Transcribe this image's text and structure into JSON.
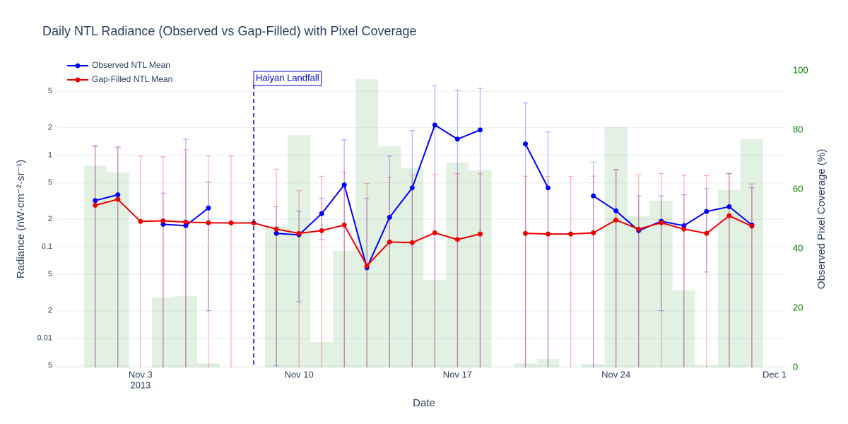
{
  "chart_data": {
    "type": "line",
    "title": "Daily NTL Radiance (Observed vs Gap-Filled) with Pixel Coverage",
    "x_label": "Date",
    "y_label": "Radiance (nW·cm⁻²·sr⁻¹)",
    "y2_label": "Observed Pixel Coverage (%)",
    "x": [
      "2013-11-01",
      "2013-11-02",
      "2013-11-03",
      "2013-11-04",
      "2013-11-05",
      "2013-11-06",
      "2013-11-07",
      "2013-11-08",
      "2013-11-09",
      "2013-11-10",
      "2013-11-11",
      "2013-11-12",
      "2013-11-13",
      "2013-11-14",
      "2013-11-15",
      "2013-11-16",
      "2013-11-17",
      "2013-11-18",
      "2013-11-19",
      "2013-11-20",
      "2013-11-21",
      "2013-11-22",
      "2013-11-23",
      "2013-11-24",
      "2013-11-25",
      "2013-11-26",
      "2013-11-27",
      "2013-11-28",
      "2013-11-29",
      "2013-11-30"
    ],
    "xlim": [
      "2013-10-30T07:00Z",
      "2013-12-01T10:30Z"
    ],
    "xticks": [
      {
        "value": "2013-11-03",
        "label": "Nov 3"
      },
      {
        "value": "2013-11-10",
        "label": "Nov 10"
      },
      {
        "value": "2013-11-17",
        "label": "Nov 17"
      },
      {
        "value": "2013-11-24",
        "label": "Nov 24"
      },
      {
        "value": "2013-12-01",
        "label": "Dec 1"
      }
    ],
    "x_year_label": "2013",
    "ylim": [
      0.0048,
      8.4
    ],
    "log_y": true,
    "yticks": [
      {
        "value": 0.005,
        "label": "5"
      },
      0.01,
      {
        "value": 0.02,
        "label": "2"
      },
      {
        "value": 0.05,
        "label": "5"
      },
      0.1,
      {
        "value": 0.2,
        "label": "2"
      },
      {
        "value": 0.5,
        "label": "5"
      },
      1,
      {
        "value": 2,
        "label": "2"
      },
      {
        "value": 5,
        "label": "5"
      }
    ],
    "y2lim": [
      0,
      100
    ],
    "y2ticks": [
      0,
      20,
      40,
      60,
      80,
      100
    ],
    "y2_color": "#008000",
    "grid": true,
    "legend": "top-left",
    "series": [
      {
        "name": "Observed NTL Mean",
        "color": "#0000ff",
        "values": [
          0.32,
          0.37,
          null,
          0.176,
          0.17,
          0.265,
          null,
          null,
          0.14,
          0.135,
          0.23,
          0.475,
          0.059,
          0.21,
          0.44,
          2.14,
          1.5,
          1.89,
          null,
          1.33,
          0.44,
          null,
          0.36,
          0.247,
          0.15,
          0.19,
          0.17,
          0.243,
          0.274,
          0.173
        ],
        "error": [
          0.96,
          0.87,
          null,
          0.21,
          1.33,
          0.245,
          null,
          null,
          0.135,
          0.11,
          0.11,
          1.0,
          0.28,
          0.77,
          1.42,
          3.6,
          3.6,
          3.5,
          null,
          2.4,
          1.36,
          null,
          0.48,
          0.45,
          0.21,
          0.17,
          0.2,
          0.19,
          0.36,
          0.27
        ]
      },
      {
        "name": "Gap-Filled NTL Mean",
        "color": "#ee0000",
        "values": [
          0.284,
          0.33,
          0.189,
          0.192,
          0.186,
          0.183,
          0.182,
          0.182,
          0.156,
          0.14,
          0.15,
          0.173,
          0.062,
          0.113,
          0.111,
          0.142,
          0.12,
          0.138,
          null,
          0.14,
          0.138,
          0.138,
          0.142,
          0.196,
          0.156,
          0.183,
          0.156,
          0.14,
          0.218,
          0.168
        ],
        "error": [
          0.96,
          0.87,
          0.79,
          0.77,
          0.96,
          0.8,
          0.8,
          null,
          0.55,
          0.27,
          0.44,
          0.48,
          0.43,
          0.46,
          0.5,
          0.47,
          0.51,
          0.49,
          null,
          0.45,
          0.45,
          0.45,
          0.45,
          0.5,
          0.46,
          0.45,
          0.45,
          0.46,
          0.41,
          0.32
        ]
      },
      {
        "type": "bar",
        "axis": "y2",
        "color": "#008000",
        "values": [
          68,
          65.7,
          0,
          23.6,
          24,
          1.4,
          0,
          0,
          47.6,
          78.3,
          8.6,
          39.3,
          97.1,
          74.5,
          67.1,
          29.5,
          69,
          66.4,
          0,
          1.4,
          2.9,
          0,
          1.2,
          81,
          51,
          56.2,
          26,
          0.7,
          59.8,
          77
        ]
      }
    ],
    "annotations": [
      {
        "text": "Haiyan Landfall",
        "x": "2013-11-08",
        "color": "#0000cc"
      }
    ]
  }
}
